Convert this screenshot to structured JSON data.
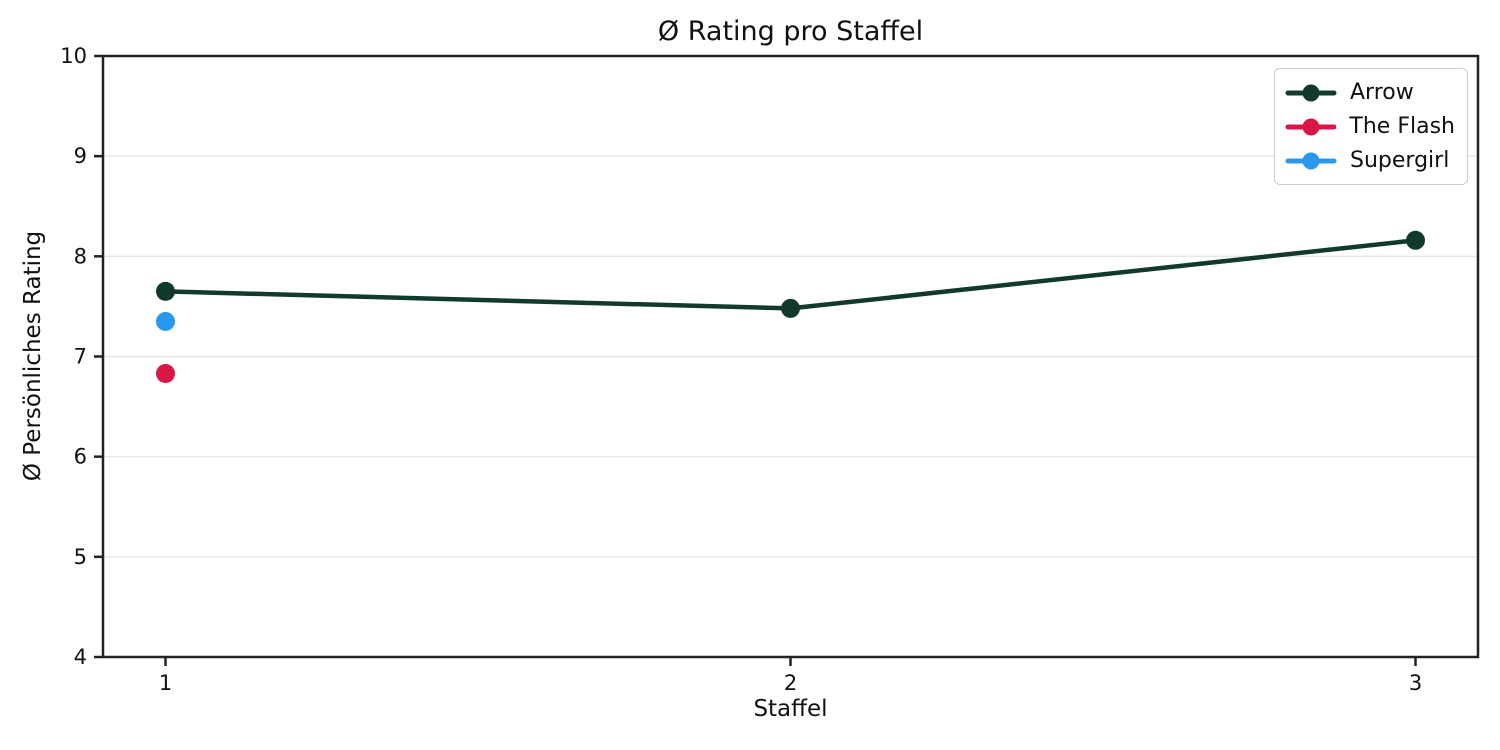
{
  "chart_data": {
    "type": "line",
    "title": "Ø Rating pro Staffel",
    "xlabel": "Staffel",
    "ylabel": "Ø Persönliches Rating",
    "xlim": [
      0.9,
      3.1
    ],
    "ylim": [
      4,
      10
    ],
    "xticks": [
      1,
      2,
      3
    ],
    "yticks": [
      4,
      5,
      6,
      7,
      8,
      9,
      10
    ],
    "grid": "horizontal-only",
    "grid_color": "#e7e7e7",
    "axis_color": "#222222",
    "text_color": "#111111",
    "legend_position": "top-right",
    "series": [
      {
        "name": "Arrow",
        "color": "#123a2a",
        "x": [
          1,
          2,
          3
        ],
        "values": [
          7.65,
          7.48,
          8.16
        ]
      },
      {
        "name": "The Flash",
        "color": "#d81746",
        "x": [
          1
        ],
        "values": [
          6.83
        ]
      },
      {
        "name": "Supergirl",
        "color": "#2b98f0",
        "x": [
          1
        ],
        "values": [
          7.35
        ]
      }
    ]
  }
}
